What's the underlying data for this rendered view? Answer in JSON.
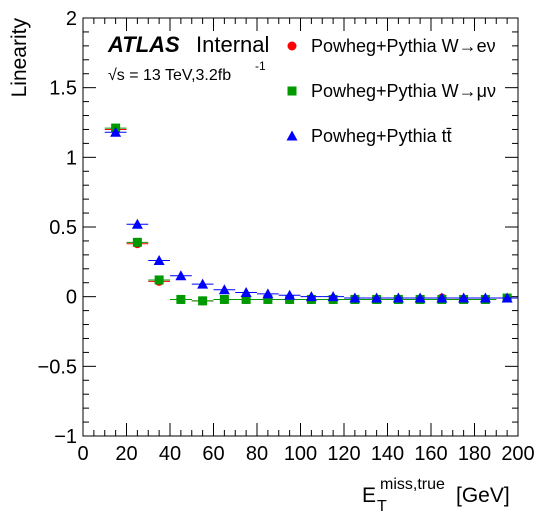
{
  "chart_data": {
    "type": "scatter",
    "xlabel_main": "E",
    "xlabel_sub": "T",
    "xlabel_sup": "miss,true",
    "xlabel_unit": "[GeV]",
    "ylabel": "Linearity",
    "xlim": [
      0,
      200
    ],
    "ylim": [
      -1,
      2
    ],
    "x_ticks": [
      "0",
      "20",
      "40",
      "60",
      "80",
      "100",
      "120",
      "140",
      "160",
      "180",
      "200"
    ],
    "y_ticks": [
      "−1",
      "−0.5",
      "0",
      "0.5",
      "1",
      "1.5",
      "2"
    ],
    "atlas_label": "ATLAS",
    "atlas_status": "Internal",
    "energy_label": "√s = 13 TeV,3.2fb",
    "energy_sup": "-1",
    "legend_position": "top-right",
    "x_bins": [
      15,
      25,
      35,
      45,
      55,
      65,
      75,
      85,
      95,
      105,
      115,
      125,
      135,
      145,
      155,
      165,
      175,
      185,
      195
    ],
    "series": [
      {
        "name": "Powheg+Pythia W→eν",
        "marker": "circle",
        "color": "#ff0000",
        "values": [
          1.2,
          0.38,
          0.11,
          -0.02,
          -0.03,
          -0.02,
          -0.02,
          -0.02,
          -0.02,
          -0.02,
          -0.02,
          -0.02,
          -0.02,
          -0.02,
          -0.02,
          -0.01,
          -0.02,
          -0.02,
          -0.01
        ]
      },
      {
        "name": "Powheg+Pythia W→μν",
        "marker": "square",
        "color": "#009900",
        "values": [
          1.21,
          0.39,
          0.12,
          -0.02,
          -0.03,
          -0.02,
          -0.02,
          -0.02,
          -0.02,
          -0.02,
          -0.02,
          -0.02,
          -0.02,
          -0.02,
          -0.02,
          -0.02,
          -0.02,
          -0.02,
          -0.01
        ]
      },
      {
        "name": "Powheg+Pythia tt̄",
        "marker": "triangle",
        "color": "#0000ff",
        "values": [
          1.18,
          0.52,
          0.26,
          0.15,
          0.09,
          0.05,
          0.03,
          0.02,
          0.01,
          0.0,
          0.0,
          -0.01,
          -0.01,
          -0.01,
          -0.01,
          -0.01,
          -0.01,
          -0.01,
          -0.01
        ]
      }
    ]
  }
}
